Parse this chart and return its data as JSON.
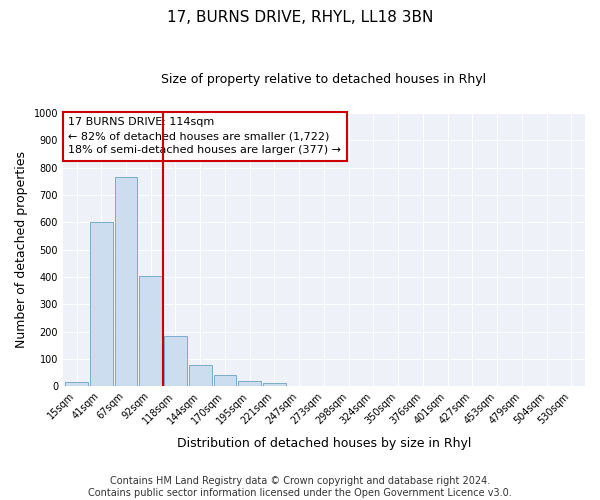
{
  "title": "17, BURNS DRIVE, RHYL, LL18 3BN",
  "subtitle": "Size of property relative to detached houses in Rhyl",
  "xlabel": "Distribution of detached houses by size in Rhyl",
  "ylabel": "Number of detached properties",
  "bar_labels": [
    "15sqm",
    "41sqm",
    "67sqm",
    "92sqm",
    "118sqm",
    "144sqm",
    "170sqm",
    "195sqm",
    "221sqm",
    "247sqm",
    "273sqm",
    "298sqm",
    "324sqm",
    "350sqm",
    "376sqm",
    "401sqm",
    "427sqm",
    "453sqm",
    "479sqm",
    "504sqm",
    "530sqm"
  ],
  "bar_values": [
    15,
    600,
    765,
    405,
    185,
    78,
    42,
    18,
    12,
    0,
    0,
    0,
    0,
    0,
    0,
    0,
    0,
    0,
    0,
    0,
    0
  ],
  "bar_color": "#ccddf0",
  "bar_edge_color": "#7aabcc",
  "vline_x_index": 3.5,
  "vline_color": "#cc0000",
  "annotation_line1": "17 BURNS DRIVE: 114sqm",
  "annotation_line2": "← 82% of detached houses are smaller (1,722)",
  "annotation_line3": "18% of semi-detached houses are larger (377) →",
  "annotation_box_color": "#ffffff",
  "annotation_box_edge": "#cc0000",
  "ylim": [
    0,
    1000
  ],
  "yticks": [
    0,
    100,
    200,
    300,
    400,
    500,
    600,
    700,
    800,
    900,
    1000
  ],
  "footer1": "Contains HM Land Registry data © Crown copyright and database right 2024.",
  "footer2": "Contains public sector information licensed under the Open Government Licence v3.0.",
  "fig_background": "#ffffff",
  "plot_background": "#eef2f8",
  "grid_color": "#ffffff",
  "title_fontsize": 11,
  "subtitle_fontsize": 9,
  "axis_label_fontsize": 9,
  "tick_fontsize": 7,
  "annotation_fontsize": 8,
  "footer_fontsize": 7
}
